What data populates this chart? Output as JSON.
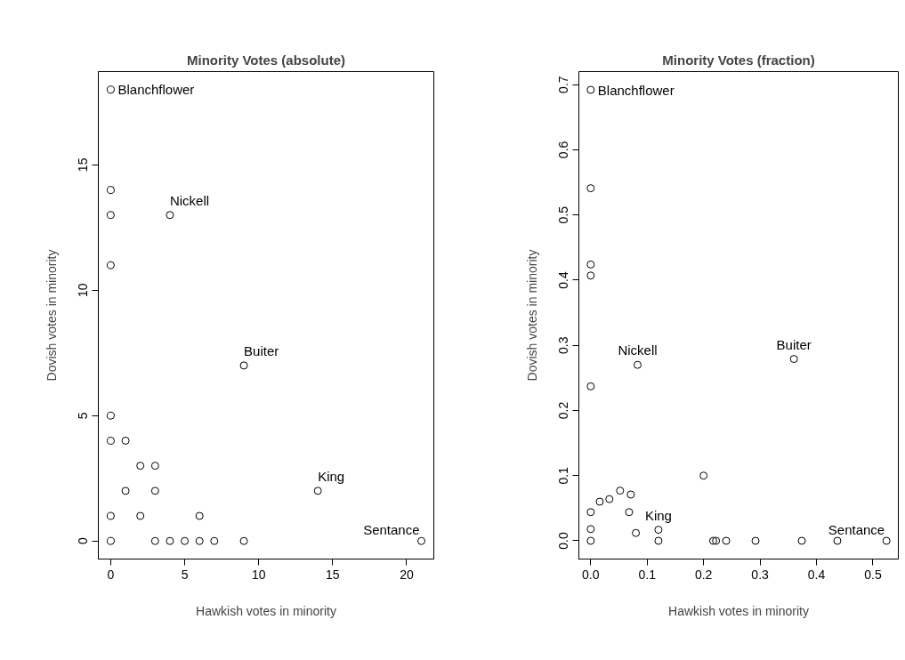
{
  "chart_data": [
    {
      "type": "scatter",
      "title": "Minority Votes (absolute)",
      "xlabel": "Hawkish votes in minority",
      "ylabel": "Dovish votes in minority",
      "marker": "circle",
      "grid": false,
      "xlim": [
        -0.84,
        21.84
      ],
      "ylim": [
        -0.72,
        18.72
      ],
      "xticks": [
        0,
        5,
        10,
        15,
        20
      ],
      "yticks": [
        0,
        5,
        10,
        15
      ],
      "series": [
        {
          "color": "#000000",
          "x": [
            0,
            0,
            0,
            0,
            4,
            9,
            0,
            0,
            1,
            2,
            3,
            1,
            3,
            14,
            0,
            2,
            6,
            0,
            3,
            4,
            5,
            6,
            7,
            9,
            21
          ],
          "values": [
            18,
            14,
            13,
            11,
            13,
            7,
            5,
            4,
            4,
            3,
            3,
            2,
            2,
            2,
            1,
            1,
            1,
            0,
            0,
            0,
            0,
            0,
            0,
            0,
            0
          ]
        }
      ],
      "annotations": [
        {
          "text": "Blanchflower",
          "x": 0,
          "y": 18
        },
        {
          "text": "Nickell",
          "x": 4,
          "y": 13
        },
        {
          "text": "Buiter",
          "x": 9,
          "y": 7
        },
        {
          "text": "King",
          "x": 14,
          "y": 2
        },
        {
          "text": "Sentance",
          "x": 21,
          "y": 0
        }
      ]
    },
    {
      "type": "scatter",
      "title": "Minority Votes (fraction)",
      "xlabel": "Hawkish votes in minority",
      "ylabel": "Dovish votes in minority",
      "marker": "circle",
      "grid": false,
      "xlim": [
        -0.021,
        0.545
      ],
      "ylim": [
        -0.028,
        0.72
      ],
      "xticks": [
        {
          "value": 0,
          "label": "0.0"
        },
        {
          "value": 0.1,
          "label": "0.1"
        },
        {
          "value": 0.2,
          "label": "0.2"
        },
        {
          "value": 0.3,
          "label": "0.3"
        },
        {
          "value": 0.4,
          "label": "0.4"
        },
        {
          "value": 0.5,
          "label": "0.5"
        }
      ],
      "yticks": [
        {
          "value": 0,
          "label": "0.0"
        },
        {
          "value": 0.1,
          "label": "0.1"
        },
        {
          "value": 0.2,
          "label": "0.2"
        },
        {
          "value": 0.3,
          "label": "0.3"
        },
        {
          "value": 0.4,
          "label": "0.4"
        },
        {
          "value": 0.5,
          "label": "0.5"
        },
        {
          "value": 0.6,
          "label": "0.6"
        },
        {
          "value": 0.7,
          "label": "0.7"
        }
      ],
      "series": [
        {
          "color": "#000000",
          "x": [
            0,
            0,
            0,
            0,
            0.083,
            0.36,
            0,
            0.2,
            0,
            0.016,
            0.033,
            0.052,
            0.071,
            0.068,
            0.08,
            0,
            0.12,
            0.12,
            0,
            0.217,
            0.222,
            0.24,
            0.292,
            0.374,
            0.437,
            0.524
          ],
          "values": [
            0.692,
            0.541,
            0.424,
            0.407,
            0.27,
            0.279,
            0.237,
            0.1,
            0.044,
            0.06,
            0.064,
            0.077,
            0.071,
            0.044,
            0.012,
            0.018,
            0.017,
            0,
            0,
            0,
            0,
            0,
            0,
            0,
            0,
            0
          ]
        }
      ],
      "annotations": [
        {
          "text": "Blanchflower",
          "x": 0,
          "y": 0.692
        },
        {
          "text": "Nickell",
          "x": 0.083,
          "y": 0.27
        },
        {
          "text": "Buiter",
          "x": 0.36,
          "y": 0.279
        },
        {
          "text": "King",
          "x": 0.12,
          "y": 0.017
        },
        {
          "text": "Sentance",
          "x": 0.524,
          "y": 0
        }
      ]
    }
  ]
}
